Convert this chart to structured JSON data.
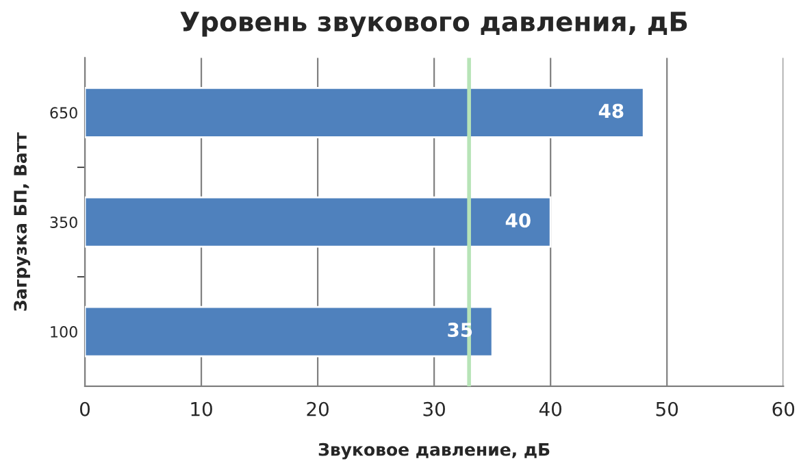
{
  "chart_data": {
    "type": "bar",
    "orientation": "horizontal",
    "title": "Уровень звукового давления, дБ",
    "xlabel": "Звуковое давление, дБ",
    "ylabel": "Загрузка БП, Ватт",
    "categories": [
      "650",
      "350",
      "100"
    ],
    "values": [
      48,
      40,
      35
    ],
    "color": "#4f81bd",
    "xlim": [
      0,
      60
    ],
    "xticks": [
      0,
      10,
      20,
      30,
      40,
      50,
      60
    ],
    "grid": "x",
    "data_labels": true,
    "ref_lines": [
      {
        "axis": "x",
        "value": 33,
        "color": "#b7e4b7"
      }
    ]
  }
}
